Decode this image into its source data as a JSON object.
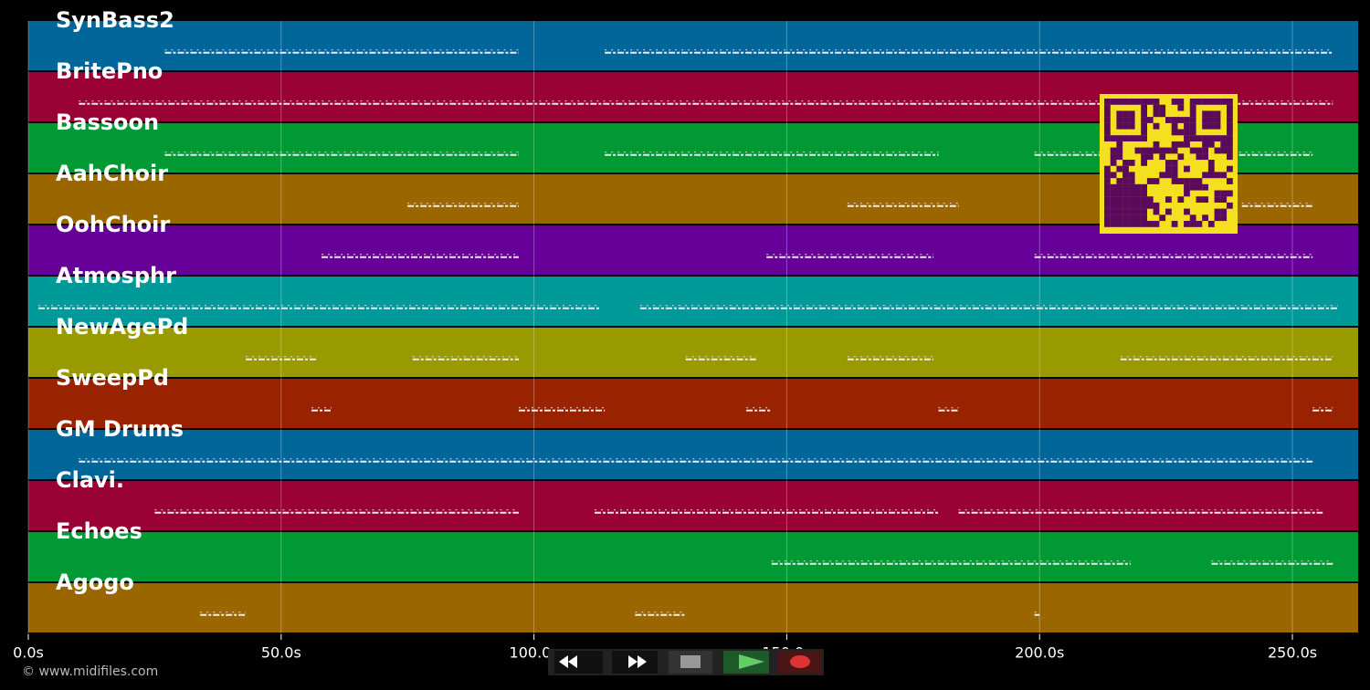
{
  "timeline": {
    "xlim": [
      0,
      263
    ],
    "xticks": [
      {
        "value": 0,
        "label": "0.0s"
      },
      {
        "value": 50,
        "label": "50.0s"
      },
      {
        "value": 100,
        "label": "100.0s"
      },
      {
        "value": 150,
        "label": "150.0s"
      },
      {
        "value": 200,
        "label": "200.0s"
      },
      {
        "value": 250,
        "label": "250.0s"
      }
    ],
    "tracks": [
      {
        "name": "SynBass2",
        "color": "#006699",
        "phrases": [
          [
            27,
            97
          ],
          [
            114,
            258
          ]
        ]
      },
      {
        "name": "BritePno",
        "color": "#990033",
        "phrases": [
          [
            10,
            258
          ]
        ]
      },
      {
        "name": "Bassoon",
        "color": "#009933",
        "phrases": [
          [
            27,
            97
          ],
          [
            114,
            180
          ],
          [
            199,
            254
          ]
        ]
      },
      {
        "name": "AahChoir",
        "color": "#996600",
        "phrases": [
          [
            75,
            97
          ],
          [
            162,
            184
          ],
          [
            240,
            254
          ]
        ]
      },
      {
        "name": "OohChoir",
        "color": "#660099",
        "phrases": [
          [
            58,
            97
          ],
          [
            146,
            179
          ],
          [
            199,
            254
          ]
        ]
      },
      {
        "name": "Atmosphr",
        "color": "#009999",
        "phrases": [
          [
            2,
            113
          ],
          [
            121,
            259
          ]
        ]
      },
      {
        "name": "NewAgePd",
        "color": "#999900",
        "phrases": [
          [
            43,
            57
          ],
          [
            76,
            97
          ],
          [
            130,
            144
          ],
          [
            162,
            179
          ],
          [
            216,
            258
          ]
        ]
      },
      {
        "name": "SweepPd",
        "color": "#992200",
        "phrases": [
          [
            56,
            60
          ],
          [
            97,
            114
          ],
          [
            142,
            147
          ],
          [
            180,
            184
          ],
          [
            254,
            258
          ]
        ]
      },
      {
        "name": "GM Drums",
        "color": "#006699",
        "phrases": [
          [
            10,
            254
          ]
        ]
      },
      {
        "name": "Clavi.",
        "color": "#990033",
        "phrases": [
          [
            25,
            97
          ],
          [
            112,
            180
          ],
          [
            184,
            256
          ]
        ]
      },
      {
        "name": "Echoes",
        "color": "#009933",
        "phrases": [
          [
            147,
            218
          ],
          [
            234,
            258
          ]
        ]
      },
      {
        "name": "Agogo",
        "color": "#996600",
        "phrases": [
          [
            34,
            43
          ],
          [
            120,
            130
          ],
          [
            199,
            200
          ]
        ]
      }
    ]
  },
  "footer": "© www.midifiles.com"
}
